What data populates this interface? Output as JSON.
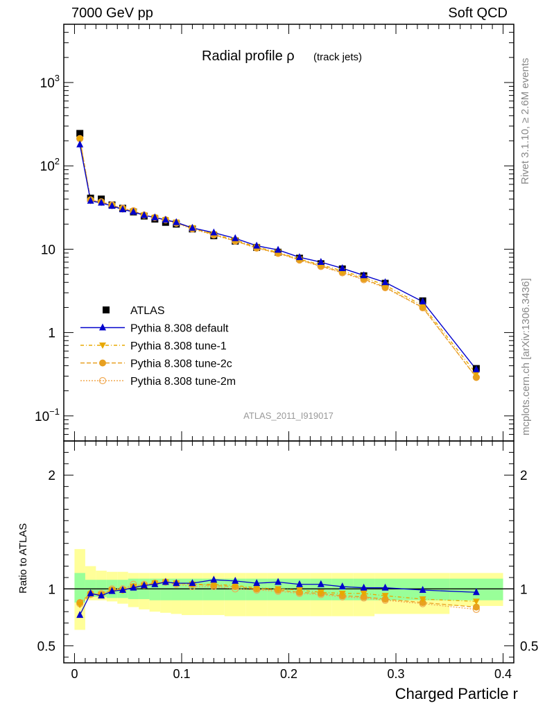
{
  "header": {
    "left": "7000 GeV pp",
    "right": "Soft QCD"
  },
  "side_labels": {
    "rivet": "Rivet 3.1.10, ≥ 2.6M events",
    "mcplots": "mcplots.cern.ch [arXiv:1306.3436]"
  },
  "chart_data": {
    "type": "scatter",
    "title": "Radial profile ρ",
    "title_suffix": "(track jets)",
    "analysis_id": "ATLAS_2011_I919017",
    "xlabel": "Charged Particle r",
    "ylabel_ratio": "Ratio to ATLAS",
    "xlim": [
      -0.01,
      0.41
    ],
    "ylim_main": [
      0.05,
      5000
    ],
    "yscale_main": "log",
    "ylim_ratio": [
      0.35,
      2.3
    ],
    "x_ticks": [
      "0",
      "0.1",
      "0.2",
      "0.3",
      "0.4"
    ],
    "main_y_ticks": [
      "10⁻¹",
      "1",
      "10",
      "10²",
      "10³"
    ],
    "ratio_y_ticks": [
      "0.5",
      "1",
      "2"
    ],
    "legend_position": "lower-left",
    "x": [
      0.005,
      0.015,
      0.025,
      0.035,
      0.045,
      0.055,
      0.065,
      0.075,
      0.085,
      0.095,
      0.11,
      0.13,
      0.15,
      0.17,
      0.19,
      0.21,
      0.23,
      0.25,
      0.27,
      0.29,
      0.325,
      0.375
    ],
    "series": [
      {
        "name": "ATLAS",
        "marker": "square",
        "color": "#000000",
        "values": [
          245,
          41,
          40,
          34,
          31,
          28,
          25,
          23,
          21,
          20,
          17.5,
          14.5,
          12.5,
          10.5,
          9.2,
          7.8,
          6.7,
          5.8,
          4.8,
          3.9,
          2.4,
          0.37
        ]
      },
      {
        "name": "Pythia 8.308 default",
        "marker": "triangle-up",
        "line": "solid",
        "color": "#0000cc",
        "values": [
          180,
          38,
          36,
          33,
          30,
          28,
          25.5,
          24,
          22.5,
          21,
          18,
          15.8,
          13.5,
          11,
          9.8,
          8.0,
          7.0,
          5.9,
          4.85,
          4.0,
          2.35,
          0.36
        ]
      },
      {
        "name": "Pythia 8.308 tune-1",
        "marker": "triangle-down",
        "line": "dash-dot",
        "color": "#e8a800",
        "values": [
          208,
          38,
          36,
          33,
          30,
          28.5,
          25.5,
          24,
          22.5,
          21,
          18,
          15.2,
          12.9,
          10.6,
          9.2,
          7.6,
          6.5,
          5.5,
          4.6,
          3.7,
          2.1,
          0.32
        ]
      },
      {
        "name": "Pythia 8.308 tune-2c",
        "marker": "circle",
        "line": "dashed",
        "color": "#e8a020",
        "values": [
          213,
          39,
          37,
          33.5,
          30.5,
          28.5,
          25.5,
          24,
          22.5,
          20.8,
          17.8,
          15.0,
          12.6,
          10.4,
          9.0,
          7.5,
          6.3,
          5.3,
          4.4,
          3.5,
          2.0,
          0.29
        ]
      },
      {
        "name": "Pythia 8.308 tune-2m",
        "marker": "open-circle",
        "line": "dotted",
        "color": "#f0a850",
        "values": [
          212,
          39,
          37,
          34,
          31,
          29,
          25.7,
          24,
          22.5,
          20.5,
          17.5,
          14.8,
          12.5,
          10.3,
          8.9,
          7.4,
          6.2,
          5.2,
          4.3,
          3.45,
          1.98,
          0.29
        ]
      }
    ],
    "ratio": {
      "reference": 1.0,
      "bin_edges": [
        0,
        0.01,
        0.02,
        0.03,
        0.04,
        0.05,
        0.06,
        0.07,
        0.08,
        0.09,
        0.1,
        0.12,
        0.14,
        0.16,
        0.18,
        0.2,
        0.22,
        0.24,
        0.26,
        0.28,
        0.3,
        0.35,
        0.4
      ],
      "stat_band_lo": [
        0.88,
        0.93,
        0.93,
        0.92,
        0.92,
        0.91,
        0.91,
        0.9,
        0.9,
        0.9,
        0.9,
        0.9,
        0.9,
        0.9,
        0.9,
        0.9,
        0.9,
        0.9,
        0.9,
        0.9,
        0.9,
        0.9
      ],
      "stat_band_hi": [
        1.14,
        1.08,
        1.08,
        1.08,
        1.08,
        1.09,
        1.09,
        1.09,
        1.09,
        1.09,
        1.09,
        1.09,
        1.09,
        1.09,
        1.09,
        1.09,
        1.09,
        1.09,
        1.09,
        1.09,
        1.09,
        1.09
      ],
      "syst_band_lo": [
        0.64,
        0.9,
        0.9,
        0.89,
        0.87,
        0.84,
        0.82,
        0.8,
        0.79,
        0.78,
        0.77,
        0.77,
        0.76,
        0.76,
        0.76,
        0.76,
        0.76,
        0.76,
        0.76,
        0.78,
        0.78,
        0.85
      ],
      "syst_band_hi": [
        1.35,
        1.2,
        1.16,
        1.15,
        1.15,
        1.14,
        1.14,
        1.14,
        1.14,
        1.14,
        1.14,
        1.14,
        1.14,
        1.14,
        1.14,
        1.14,
        1.14,
        1.14,
        1.14,
        1.14,
        1.14,
        1.14
      ],
      "series": [
        {
          "name": "Pythia 8.308 default",
          "values": [
            0.77,
            0.96,
            0.94,
            0.98,
            0.99,
            1.01,
            1.03,
            1.04,
            1.06,
            1.05,
            1.05,
            1.08,
            1.07,
            1.05,
            1.06,
            1.04,
            1.04,
            1.02,
            1.01,
            1.01,
            0.99,
            0.97
          ]
        },
        {
          "name": "Pythia 8.308 tune-1",
          "values": [
            0.86,
            0.95,
            0.95,
            0.99,
            0.99,
            1.02,
            1.03,
            1.05,
            1.06,
            1.05,
            1.04,
            1.04,
            1.03,
            1.01,
            1.0,
            0.99,
            0.97,
            0.96,
            0.96,
            0.94,
            0.91,
            0.89
          ]
        },
        {
          "name": "Pythia 8.308 tune-2c",
          "values": [
            0.88,
            0.96,
            0.95,
            0.99,
            0.99,
            1.02,
            1.03,
            1.05,
            1.06,
            1.05,
            1.04,
            1.03,
            1.02,
            1.0,
            0.99,
            0.97,
            0.96,
            0.94,
            0.93,
            0.91,
            0.88,
            0.84
          ]
        },
        {
          "name": "Pythia 8.308 tune-2m",
          "values": [
            0.87,
            0.95,
            0.96,
            1.0,
            1.0,
            1.04,
            1.04,
            1.05,
            1.06,
            1.04,
            1.02,
            1.02,
            1.0,
            0.99,
            0.98,
            0.96,
            0.95,
            0.93,
            0.92,
            0.9,
            0.87,
            0.82
          ]
        }
      ]
    }
  }
}
